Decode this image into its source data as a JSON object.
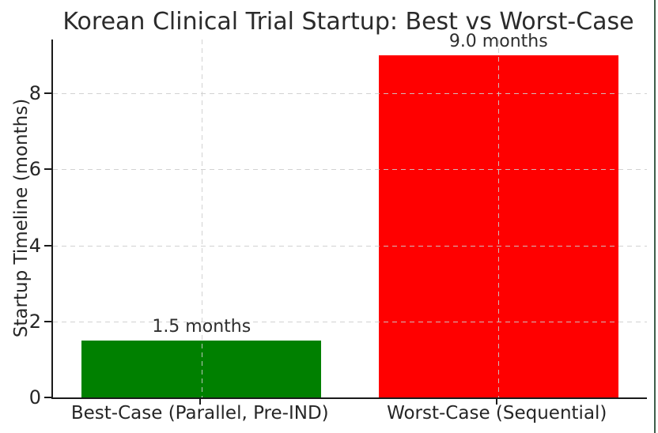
{
  "chart_data": {
    "type": "bar",
    "title": "Korean Clinical Trial Startup: Best vs Worst-Case",
    "categories": [
      "Best-Case (Parallel, Pre-IND)",
      "Worst-Case (Sequential)"
    ],
    "values": [
      1.5,
      9.0
    ],
    "bar_labels": [
      "1.5 months",
      "9.0 months"
    ],
    "bar_colors": [
      "#008000",
      "#ff0000"
    ],
    "bar_names": [
      "bar-best-case",
      "bar-worst-case"
    ],
    "xlabel": "",
    "ylabel": "Startup Timeline (months)",
    "yticks": [
      0,
      2,
      4,
      6,
      8
    ],
    "ylim": [
      0,
      9.42
    ],
    "bar_width_fraction": 0.403,
    "grid": "both, dashed, drawn above bars",
    "grid_color": "#cdcdcd",
    "axis_color": "#1a1a1a",
    "text_color": "#262626",
    "legend": "none",
    "background": "#ffffff"
  },
  "window": {
    "right_edge_color": "#3f5e4b"
  }
}
